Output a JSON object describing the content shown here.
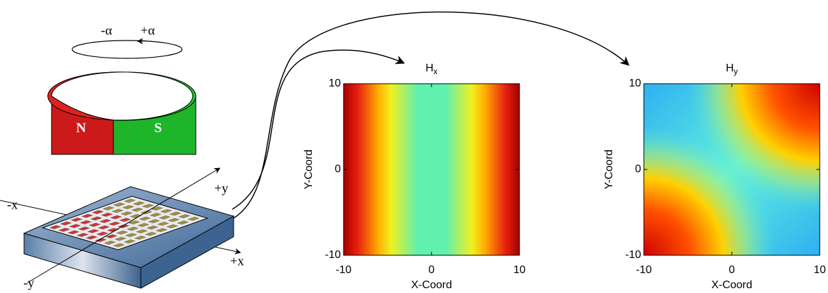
{
  "rotation": {
    "minus": "-α",
    "plus": "+α"
  },
  "magnet": {
    "north": "N",
    "south": "S"
  },
  "chip_axes": {
    "minus_x": "-x",
    "plus_x": "+x",
    "plus_y": "+y",
    "minus_y": "-y"
  },
  "plots": [
    {
      "title": {
        "main": "H",
        "sub": "x"
      },
      "x_label": "X-Coord",
      "y_label": "Y-Coord",
      "xlim": [
        -10,
        10
      ],
      "ylim": [
        -10,
        10
      ],
      "xticks": [
        -10,
        0,
        10
      ],
      "yticks": [
        -10,
        0,
        10
      ]
    },
    {
      "title": {
        "main": "H",
        "sub": "y"
      },
      "x_label": "X-Coord",
      "y_label": "Y-Coord",
      "xlim": [
        -10,
        10
      ],
      "ylim": [
        -10,
        10
      ],
      "xticks": [
        -10,
        0,
        10
      ],
      "yticks": [
        -10,
        0,
        10
      ]
    }
  ]
}
